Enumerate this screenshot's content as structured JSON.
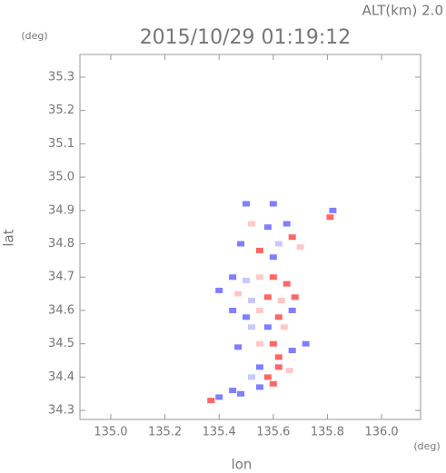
{
  "chart_data": {
    "type": "scatter",
    "title": "2015/10/29 01:19:12",
    "subtitle": "ALT(km) 2.0",
    "x_label": "lon",
    "y_label": "lat",
    "x_unit": "(deg)",
    "y_unit": "(deg)",
    "xlim": [
      134.886,
      136.144
    ],
    "ylim": [
      34.273,
      35.368
    ],
    "xticks": [
      {
        "value": 135,
        "label": "135.0"
      },
      135.2,
      135.4,
      135.6,
      135.8,
      {
        "value": 136,
        "label": "136.0"
      }
    ],
    "yticks": [
      34.3,
      34.4,
      34.5,
      34.6,
      34.7,
      34.8,
      34.9,
      {
        "value": 35,
        "label": "35.0"
      },
      35.1,
      35.2,
      35.3
    ],
    "x": [
      135.5,
      135.6,
      135.82,
      135.81,
      135.52,
      135.58,
      135.65,
      135.67,
      135.7,
      135.48,
      135.55,
      135.62,
      135.6,
      135.45,
      135.5,
      135.55,
      135.6,
      135.65,
      135.4,
      135.47,
      135.52,
      135.58,
      135.63,
      135.68,
      135.45,
      135.5,
      135.55,
      135.62,
      135.67,
      135.52,
      135.58,
      135.64,
      135.55,
      135.6,
      135.67,
      135.47,
      135.72,
      135.62,
      135.55,
      135.62,
      135.66,
      135.52,
      135.58,
      135.6,
      135.55,
      135.45,
      135.48,
      135.4,
      135.37
    ],
    "y": [
      34.92,
      34.92,
      34.9,
      34.88,
      34.86,
      34.85,
      34.86,
      34.82,
      34.79,
      34.8,
      34.78,
      34.8,
      34.76,
      34.7,
      34.69,
      34.7,
      34.7,
      34.68,
      34.66,
      34.65,
      34.63,
      34.64,
      34.63,
      34.64,
      34.6,
      34.58,
      34.6,
      34.58,
      34.6,
      34.55,
      34.55,
      34.55,
      34.5,
      34.5,
      34.48,
      34.49,
      34.5,
      34.46,
      34.43,
      34.43,
      34.42,
      34.4,
      34.4,
      34.38,
      34.37,
      34.36,
      34.35,
      34.34,
      34.33
    ],
    "colors": [
      "#7f7fff",
      "#7f7fff",
      "#7f7fff",
      "#ff6666",
      "#ffc8c8",
      "#7f7fff",
      "#7f7fff",
      "#ff6666",
      "#ffc8c8",
      "#7f7fff",
      "#ff6666",
      "#c8c8ff",
      "#7f7fff",
      "#7f7fff",
      "#c8c8ff",
      "#ffc8c8",
      "#ff6666",
      "#ff6666",
      "#7f7fff",
      "#ffc8c8",
      "#c8c8ff",
      "#ff6666",
      "#ffc8c8",
      "#ff6666",
      "#7f7fff",
      "#7f7fff",
      "#ffc8c8",
      "#ff6666",
      "#7f7fff",
      "#c8c8ff",
      "#7f7fff",
      "#ffc8c8",
      "#ffc8c8",
      "#ff6666",
      "#7f7fff",
      "#7f7fff",
      "#7f7fff",
      "#ff6666",
      "#7f7fff",
      "#ff6666",
      "#ffc8c8",
      "#c8c8ff",
      "#ff6666",
      "#ff6666",
      "#7f7fff",
      "#7f7fff",
      "#7f7fff",
      "#7f7fff",
      "#ff6666"
    ]
  }
}
